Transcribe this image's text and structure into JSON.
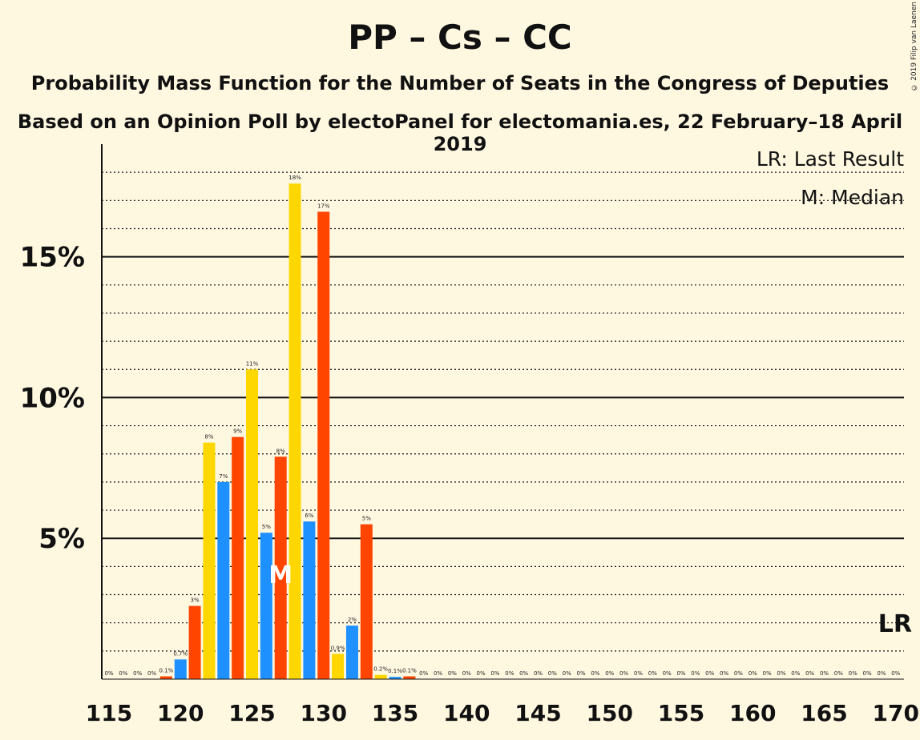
{
  "title": "PP – Cs – CC",
  "subtitle1": "Probability Mass Function for the Number of Seats in the Congress of Deputies",
  "subtitle2": "Based on an Opinion Poll by electoPanel for electomania.es, 22 February–18 April 2019",
  "copyright": "© 2019 Filip van Laenen",
  "legend": {
    "last_result": "LR: Last Result",
    "median": "M: Median"
  },
  "markers": {
    "median_label": "M",
    "median_seat": 127,
    "last_result_label": "LR",
    "last_result_seat": 170
  },
  "colors": {
    "yellow": "#ffd700",
    "orange": "#ff4500",
    "blue": "#1e90ff",
    "background": "#fff8e1"
  },
  "chart_data": {
    "type": "bar",
    "xlim": [
      115,
      170
    ],
    "ylim": [
      0,
      19
    ],
    "x_ticks": [
      "115",
      "120",
      "125",
      "130",
      "135",
      "140",
      "145",
      "150",
      "155",
      "160",
      "165",
      "170"
    ],
    "y_ticks": [
      {
        "value": 5,
        "label": "5%"
      },
      {
        "value": 10,
        "label": "10%"
      },
      {
        "value": 15,
        "label": "15%"
      }
    ],
    "bars": [
      {
        "seat": 115,
        "value": 0,
        "label": "0%",
        "color": "blue"
      },
      {
        "seat": 116,
        "value": 0,
        "label": "0%",
        "color": "yellow"
      },
      {
        "seat": 117,
        "value": 0,
        "label": "0%",
        "color": "orange"
      },
      {
        "seat": 118,
        "value": 0,
        "label": "0%",
        "color": "yellow"
      },
      {
        "seat": 119,
        "value": 0.1,
        "label": "0.1%",
        "color": "orange"
      },
      {
        "seat": 120,
        "value": 0.7,
        "label": "0.7%",
        "color": "blue"
      },
      {
        "seat": 121,
        "value": 2.6,
        "label": "3%",
        "color": "orange"
      },
      {
        "seat": 122,
        "value": 8.4,
        "label": "8%",
        "color": "yellow"
      },
      {
        "seat": 123,
        "value": 7.0,
        "label": "7%",
        "color": "blue"
      },
      {
        "seat": 124,
        "value": 8.6,
        "label": "9%",
        "color": "orange"
      },
      {
        "seat": 125,
        "value": 11.0,
        "label": "11%",
        "color": "yellow"
      },
      {
        "seat": 126,
        "value": 5.2,
        "label": "5%",
        "color": "blue"
      },
      {
        "seat": 127,
        "value": 7.9,
        "label": "8%",
        "color": "orange"
      },
      {
        "seat": 128,
        "value": 17.6,
        "label": "18%",
        "color": "yellow"
      },
      {
        "seat": 129,
        "value": 5.6,
        "label": "6%",
        "color": "blue"
      },
      {
        "seat": 130,
        "value": 16.6,
        "label": "17%",
        "color": "orange"
      },
      {
        "seat": 131,
        "value": 0.9,
        "label": "0.9%",
        "color": "yellow"
      },
      {
        "seat": 132,
        "value": 1.9,
        "label": "2%",
        "color": "blue"
      },
      {
        "seat": 133,
        "value": 5.5,
        "label": "5%",
        "color": "orange"
      },
      {
        "seat": 134,
        "value": 0.15,
        "label": "0.2%",
        "color": "yellow"
      },
      {
        "seat": 135,
        "value": 0.08,
        "label": "0.1%",
        "color": "blue"
      },
      {
        "seat": 136,
        "value": 0.1,
        "label": "0.1%",
        "color": "orange"
      },
      {
        "seat": 137,
        "value": 0,
        "label": "0%",
        "color": "yellow"
      },
      {
        "seat": 138,
        "value": 0,
        "label": "0%",
        "color": "blue"
      },
      {
        "seat": 139,
        "value": 0,
        "label": "0%",
        "color": "orange"
      },
      {
        "seat": 140,
        "value": 0,
        "label": "0%",
        "color": "yellow"
      },
      {
        "seat": 141,
        "value": 0,
        "label": "0%",
        "color": "blue"
      },
      {
        "seat": 142,
        "value": 0,
        "label": "0%",
        "color": "orange"
      },
      {
        "seat": 143,
        "value": 0,
        "label": "0%",
        "color": "yellow"
      },
      {
        "seat": 144,
        "value": 0,
        "label": "0%",
        "color": "blue"
      },
      {
        "seat": 145,
        "value": 0,
        "label": "0%",
        "color": "orange"
      },
      {
        "seat": 146,
        "value": 0,
        "label": "0%",
        "color": "yellow"
      },
      {
        "seat": 147,
        "value": 0,
        "label": "0%",
        "color": "blue"
      },
      {
        "seat": 148,
        "value": 0,
        "label": "0%",
        "color": "orange"
      },
      {
        "seat": 149,
        "value": 0,
        "label": "0%",
        "color": "yellow"
      },
      {
        "seat": 150,
        "value": 0,
        "label": "0%",
        "color": "blue"
      },
      {
        "seat": 151,
        "value": 0,
        "label": "0%",
        "color": "orange"
      },
      {
        "seat": 152,
        "value": 0,
        "label": "0%",
        "color": "yellow"
      },
      {
        "seat": 153,
        "value": 0,
        "label": "0%",
        "color": "blue"
      },
      {
        "seat": 154,
        "value": 0,
        "label": "0%",
        "color": "orange"
      },
      {
        "seat": 155,
        "value": 0,
        "label": "0%",
        "color": "yellow"
      },
      {
        "seat": 156,
        "value": 0,
        "label": "0%",
        "color": "blue"
      },
      {
        "seat": 157,
        "value": 0,
        "label": "0%",
        "color": "orange"
      },
      {
        "seat": 158,
        "value": 0,
        "label": "0%",
        "color": "yellow"
      },
      {
        "seat": 159,
        "value": 0,
        "label": "0%",
        "color": "blue"
      },
      {
        "seat": 160,
        "value": 0,
        "label": "0%",
        "color": "orange"
      },
      {
        "seat": 161,
        "value": 0,
        "label": "0%",
        "color": "yellow"
      },
      {
        "seat": 162,
        "value": 0,
        "label": "0%",
        "color": "blue"
      },
      {
        "seat": 163,
        "value": 0,
        "label": "0%",
        "color": "orange"
      },
      {
        "seat": 164,
        "value": 0,
        "label": "0%",
        "color": "yellow"
      },
      {
        "seat": 165,
        "value": 0,
        "label": "0%",
        "color": "blue"
      },
      {
        "seat": 166,
        "value": 0,
        "label": "0%",
        "color": "orange"
      },
      {
        "seat": 167,
        "value": 0,
        "label": "0%",
        "color": "yellow"
      },
      {
        "seat": 168,
        "value": 0,
        "label": "0%",
        "color": "blue"
      },
      {
        "seat": 169,
        "value": 0,
        "label": "0%",
        "color": "orange"
      },
      {
        "seat": 170,
        "value": 0,
        "label": "0%",
        "color": "yellow"
      }
    ]
  }
}
